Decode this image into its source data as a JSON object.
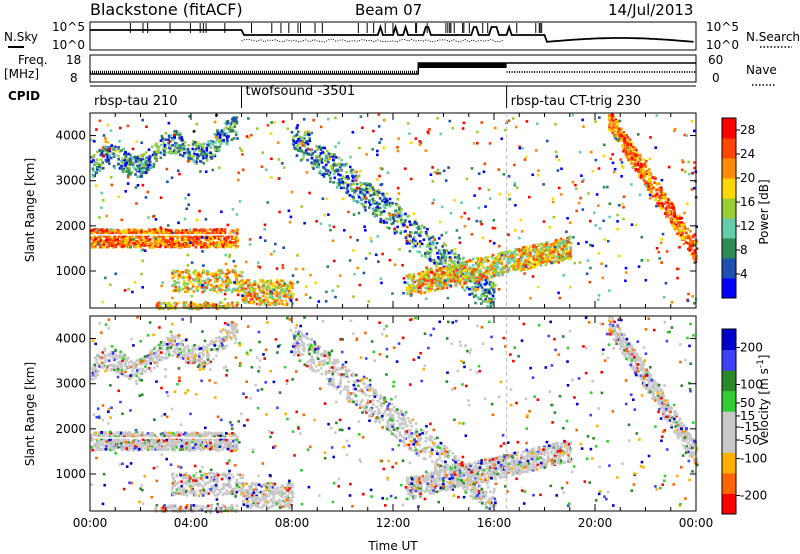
{
  "header": {
    "station": "Blackstone (fitACF)",
    "beam": "Beam 07",
    "date": "14/Jul/2013"
  },
  "strip": {
    "nsky_label": "N.Sky",
    "nsky_ticks": [
      "10^5",
      "10^0"
    ],
    "nsearch_label": "N.Search",
    "nsearch_ticks": [
      "10^5",
      "10^0"
    ],
    "freq_label": "Freq.",
    "freq_unit": "[MHz]",
    "freq_ticks": [
      "18",
      "8"
    ],
    "nave_label": "Nave",
    "nave_ticks": [
      "60",
      "0"
    ],
    "cpid_label": "CPID"
  },
  "cpid": [
    {
      "name": "rbsp-tau 210",
      "start_hour": 0
    },
    {
      "name": "twofsound -3501",
      "start_hour": 6
    },
    {
      "name": "rbsp-tau CT-trig 230",
      "start_hour": 16.5
    }
  ],
  "colors": {
    "power_scale": [
      "#0000ff",
      "#1f4fb0",
      "#2e8b57",
      "#66cdaa",
      "#9acd32",
      "#ffd700",
      "#ff8c00",
      "#ff4500",
      "#ff0000"
    ],
    "velocity_scale": [
      "#ff0000",
      "#ff6600",
      "#ffb000",
      "#c8c8c8",
      "#c8c8c8",
      "#33cc33",
      "#2a8a2a",
      "#4040ff",
      "#0000cc"
    ]
  },
  "chart_data": [
    {
      "type": "heatmap",
      "title": "Power",
      "xlabel": "",
      "ylabel": "Slant Range [km]",
      "xlim": [
        0,
        24
      ],
      "ylim": [
        180,
        4500
      ],
      "x_ticks": [
        "00:00",
        "04:00",
        "08:00",
        "12:00",
        "16:00",
        "20:00",
        "00:00"
      ],
      "y_ticks": [
        "1000",
        "2000",
        "3000",
        "4000"
      ],
      "colorbar_label": "Power [dB]",
      "colorbar_ticks": [
        "4",
        "8",
        "12",
        "16",
        "20",
        "24",
        "28"
      ],
      "colorbar_range": [
        0,
        30
      ]
    },
    {
      "type": "heatmap",
      "title": "Velocity",
      "xlabel": "Time UT",
      "ylabel": "Slant Range [km]",
      "xlim": [
        0,
        24
      ],
      "ylim": [
        180,
        4500
      ],
      "x_ticks": [
        "00:00",
        "04:00",
        "08:00",
        "12:00",
        "16:00",
        "20:00",
        "00:00"
      ],
      "y_ticks": [
        "1000",
        "2000",
        "3000",
        "4000"
      ],
      "colorbar_label": "Velocity [m s",
      "colorbar_label_sup": "-1",
      "colorbar_ticks": [
        "200",
        "100",
        "50",
        "15",
        "-15",
        "-50",
        "-100",
        "-200"
      ],
      "colorbar_range": [
        -250,
        250
      ]
    }
  ]
}
